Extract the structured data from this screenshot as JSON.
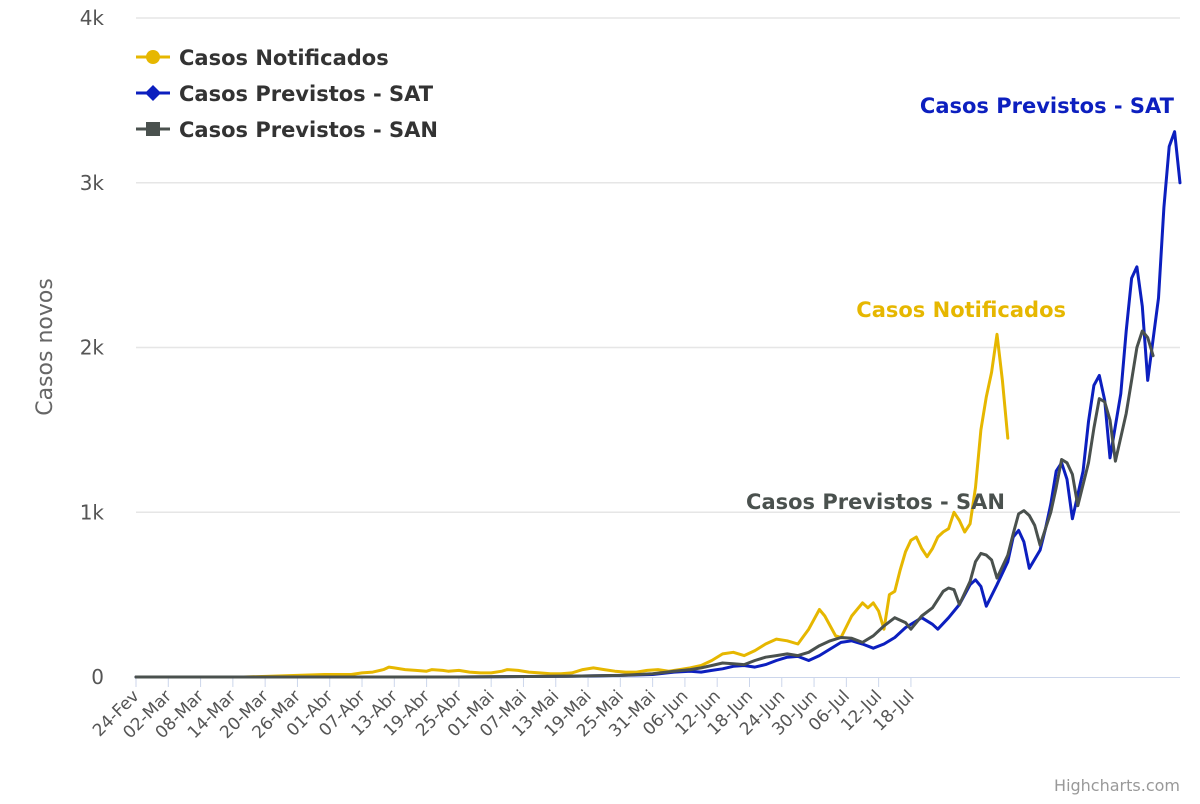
{
  "chart_data": {
    "type": "line",
    "ylabel": "Casos novos",
    "ylim": [
      0,
      4000
    ],
    "yticks": [
      0,
      1000,
      2000,
      3000,
      4000
    ],
    "ytick_labels": [
      "0",
      "1k",
      "2k",
      "3k",
      "4k"
    ],
    "x_start": "2020-02-24",
    "x_days": 146,
    "x_tick_labels": [
      "24-Fev",
      "02-Mar",
      "08-Mar",
      "14-Mar",
      "20-Mar",
      "26-Mar",
      "01-Abr",
      "07-Abr",
      "13-Abr",
      "19-Abr",
      "25-Abr",
      "01-Mai",
      "07-Mai",
      "13-Mai",
      "19-Mai",
      "25-Mai",
      "31-Mai",
      "06-Jun",
      "12-Jun",
      "18-Jun",
      "24-Jun",
      "30-Jun",
      "06-Jul",
      "12-Jul",
      "18-Jul"
    ],
    "grid": true,
    "legend_position": "top-left",
    "series": [
      {
        "name": "Casos Notificados",
        "color": "#e6b700",
        "marker": "circle",
        "points": [
          [
            0,
            0
          ],
          [
            20,
            0
          ],
          [
            25,
            5
          ],
          [
            30,
            10
          ],
          [
            35,
            15
          ],
          [
            40,
            15
          ],
          [
            42,
            25
          ],
          [
            44,
            30
          ],
          [
            46,
            45
          ],
          [
            47,
            60
          ],
          [
            48,
            55
          ],
          [
            50,
            45
          ],
          [
            52,
            40
          ],
          [
            54,
            35
          ],
          [
            55,
            45
          ],
          [
            57,
            40
          ],
          [
            58,
            35
          ],
          [
            60,
            40
          ],
          [
            62,
            30
          ],
          [
            64,
            25
          ],
          [
            66,
            25
          ],
          [
            68,
            35
          ],
          [
            69,
            45
          ],
          [
            71,
            40
          ],
          [
            73,
            30
          ],
          [
            75,
            25
          ],
          [
            77,
            20
          ],
          [
            79,
            20
          ],
          [
            81,
            25
          ],
          [
            83,
            45
          ],
          [
            85,
            55
          ],
          [
            87,
            45
          ],
          [
            89,
            35
          ],
          [
            91,
            30
          ],
          [
            93,
            30
          ],
          [
            95,
            40
          ],
          [
            97,
            45
          ],
          [
            99,
            35
          ],
          [
            101,
            45
          ],
          [
            103,
            55
          ],
          [
            105,
            70
          ],
          [
            107,
            100
          ],
          [
            109,
            140
          ],
          [
            111,
            150
          ],
          [
            113,
            130
          ],
          [
            115,
            160
          ],
          [
            117,
            200
          ],
          [
            119,
            230
          ],
          [
            121,
            220
          ],
          [
            123,
            200
          ],
          [
            125,
            290
          ],
          [
            127,
            410
          ],
          [
            128,
            370
          ],
          [
            130,
            250
          ],
          [
            131,
            240
          ],
          [
            133,
            370
          ],
          [
            135,
            450
          ],
          [
            136,
            420
          ],
          [
            137,
            450
          ],
          [
            138,
            400
          ],
          [
            139,
            290
          ],
          [
            140,
            500
          ],
          [
            141,
            520
          ],
          [
            142,
            650
          ],
          [
            143,
            760
          ],
          [
            144,
            830
          ],
          [
            145,
            850
          ],
          [
            146,
            780
          ],
          [
            147,
            730
          ],
          [
            148,
            780
          ],
          [
            149,
            850
          ],
          [
            150,
            880
          ],
          [
            151,
            900
          ],
          [
            152,
            1000
          ],
          [
            153,
            950
          ],
          [
            154,
            880
          ],
          [
            155,
            930
          ],
          [
            156,
            1150
          ],
          [
            157,
            1500
          ],
          [
            158,
            1700
          ],
          [
            159,
            1850
          ],
          [
            160,
            2080
          ],
          [
            161,
            1800
          ],
          [
            162,
            1450
          ]
        ]
      },
      {
        "name": "Casos Previstos - SAT",
        "color": "#0c1fbf",
        "marker": "diamond",
        "points": [
          [
            0,
            0
          ],
          [
            60,
            0
          ],
          [
            80,
            5
          ],
          [
            90,
            10
          ],
          [
            96,
            15
          ],
          [
            100,
            30
          ],
          [
            103,
            35
          ],
          [
            105,
            30
          ],
          [
            107,
            40
          ],
          [
            109,
            50
          ],
          [
            111,
            65
          ],
          [
            113,
            70
          ],
          [
            115,
            60
          ],
          [
            117,
            75
          ],
          [
            119,
            100
          ],
          [
            121,
            120
          ],
          [
            123,
            125
          ],
          [
            125,
            100
          ],
          [
            127,
            130
          ],
          [
            129,
            170
          ],
          [
            131,
            210
          ],
          [
            133,
            220
          ],
          [
            135,
            200
          ],
          [
            137,
            175
          ],
          [
            139,
            200
          ],
          [
            141,
            240
          ],
          [
            143,
            300
          ],
          [
            145,
            340
          ],
          [
            146,
            360
          ],
          [
            148,
            320
          ],
          [
            149,
            290
          ],
          [
            151,
            360
          ],
          [
            153,
            440
          ],
          [
            155,
            560
          ],
          [
            156,
            590
          ],
          [
            157,
            550
          ],
          [
            158,
            430
          ],
          [
            160,
            560
          ],
          [
            162,
            700
          ],
          [
            163,
            850
          ],
          [
            164,
            890
          ],
          [
            165,
            820
          ],
          [
            166,
            660
          ],
          [
            168,
            770
          ],
          [
            169,
            900
          ],
          [
            170,
            1050
          ],
          [
            171,
            1250
          ],
          [
            172,
            1300
          ],
          [
            173,
            1200
          ],
          [
            174,
            960
          ],
          [
            176,
            1250
          ],
          [
            177,
            1550
          ],
          [
            178,
            1770
          ],
          [
            179,
            1830
          ],
          [
            180,
            1680
          ],
          [
            181,
            1330
          ],
          [
            183,
            1720
          ],
          [
            184,
            2100
          ],
          [
            185,
            2420
          ],
          [
            186,
            2490
          ],
          [
            187,
            2250
          ],
          [
            188,
            1800
          ],
          [
            190,
            2300
          ],
          [
            191,
            2850
          ],
          [
            192,
            3220
          ],
          [
            193,
            3310
          ],
          [
            194,
            3000
          ]
        ]
      },
      {
        "name": "Casos Previstos - SAN",
        "color": "#4a514e",
        "marker": "square",
        "points": [
          [
            0,
            0
          ],
          [
            60,
            0
          ],
          [
            80,
            5
          ],
          [
            90,
            10
          ],
          [
            96,
            20
          ],
          [
            100,
            35
          ],
          [
            103,
            45
          ],
          [
            105,
            55
          ],
          [
            107,
            70
          ],
          [
            109,
            85
          ],
          [
            111,
            80
          ],
          [
            113,
            75
          ],
          [
            115,
            100
          ],
          [
            117,
            120
          ],
          [
            119,
            130
          ],
          [
            121,
            140
          ],
          [
            123,
            130
          ],
          [
            125,
            150
          ],
          [
            127,
            190
          ],
          [
            129,
            220
          ],
          [
            131,
            240
          ],
          [
            133,
            235
          ],
          [
            135,
            210
          ],
          [
            137,
            250
          ],
          [
            139,
            310
          ],
          [
            141,
            360
          ],
          [
            143,
            330
          ],
          [
            144,
            290
          ],
          [
            146,
            370
          ],
          [
            148,
            420
          ],
          [
            150,
            520
          ],
          [
            151,
            540
          ],
          [
            152,
            530
          ],
          [
            153,
            440
          ],
          [
            155,
            580
          ],
          [
            156,
            700
          ],
          [
            157,
            750
          ],
          [
            158,
            740
          ],
          [
            159,
            710
          ],
          [
            160,
            600
          ],
          [
            162,
            740
          ],
          [
            163,
            870
          ],
          [
            164,
            990
          ],
          [
            165,
            1010
          ],
          [
            166,
            980
          ],
          [
            167,
            920
          ],
          [
            168,
            800
          ],
          [
            170,
            1000
          ],
          [
            171,
            1150
          ],
          [
            172,
            1320
          ],
          [
            173,
            1300
          ],
          [
            174,
            1230
          ],
          [
            175,
            1040
          ],
          [
            177,
            1300
          ],
          [
            178,
            1510
          ],
          [
            179,
            1690
          ],
          [
            180,
            1670
          ],
          [
            181,
            1560
          ],
          [
            182,
            1310
          ],
          [
            184,
            1600
          ],
          [
            185,
            1800
          ],
          [
            186,
            2000
          ],
          [
            187,
            2100
          ],
          [
            188,
            2060
          ],
          [
            189,
            1950
          ]
        ]
      }
    ],
    "end_labels": [
      {
        "series": 1,
        "text": "Casos Previstos - SAT"
      },
      {
        "series": 0,
        "text": "Casos Notificados"
      },
      {
        "series": 2,
        "text": "Casos Previstos - SAN"
      }
    ],
    "credits": "Highcharts.com"
  }
}
